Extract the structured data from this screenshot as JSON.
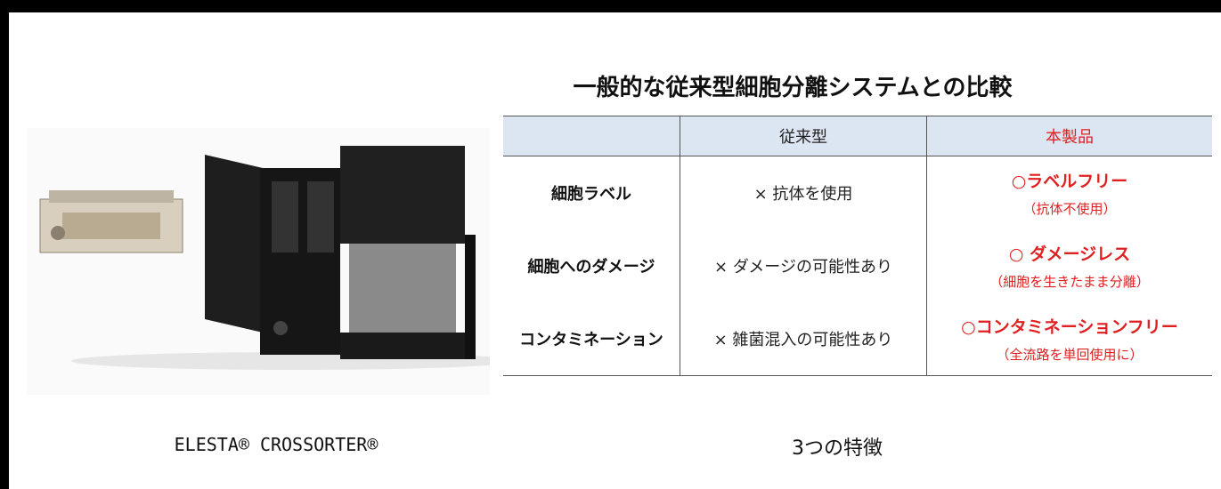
{
  "header": {
    "title": "一般的な従来型細胞分離システムとの比較"
  },
  "table": {
    "columns": [
      "従来型",
      "本製品"
    ],
    "rows": [
      {
        "label": "細胞ラベル",
        "conventional": "× 抗体を使用",
        "product": "○ラベルフリー",
        "product_note": "（抗体不使用）"
      },
      {
        "label": "細胞へのダメージ",
        "conventional": "× ダメージの可能性あり",
        "product": "○ ダメージレス",
        "product_note": "（細胞を生きたまま分離）"
      },
      {
        "label": "コンタミネーション",
        "conventional": "× 雑菌混入の可能性あり",
        "product": "○コンタミネーションフリー",
        "product_note": "（全流路を単回使用に）"
      }
    ]
  },
  "caption": "ELESTA® CROSSORTER®",
  "footer": "3つの特徴"
}
